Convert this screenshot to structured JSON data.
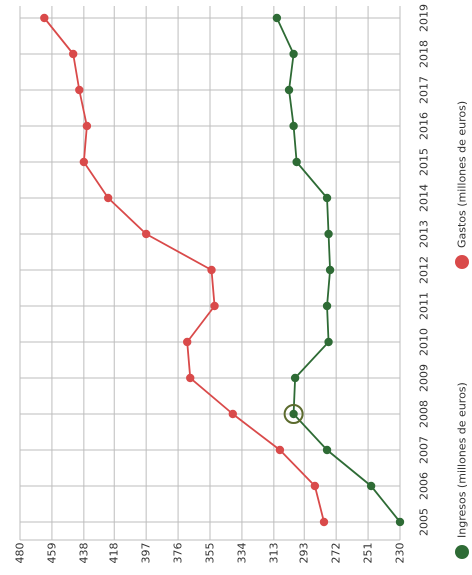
{
  "chart_data": {
    "type": "line",
    "orientation": "rotated-90-clockwise",
    "x": [
      2005,
      2006,
      2007,
      2008,
      2009,
      2010,
      2011,
      2012,
      2013,
      2014,
      2015,
      2016,
      2017,
      2018,
      2019
    ],
    "x_tick_labels": [
      "2005",
      "2006",
      "2007",
      "2008",
      "2009",
      "2010",
      "2011",
      "2012",
      "2013",
      "2014",
      "2015",
      "2016",
      "2017",
      "2018",
      "2019"
    ],
    "y_ticks": [
      480,
      459,
      438,
      418,
      397,
      376,
      355,
      334,
      313,
      293,
      272,
      251,
      230
    ],
    "y_tick_labels": [
      "480",
      "459",
      "438",
      "418",
      "397",
      "376",
      "355",
      "334",
      "313",
      "293",
      "272",
      "251",
      "230"
    ],
    "ylim": [
      230,
      480
    ],
    "grid": true,
    "legend_position": "right",
    "highlight": {
      "series": 0,
      "x": 2008
    },
    "series": [
      {
        "name": "Ingresos (millones de euros)",
        "color": "#2e6b35",
        "values": [
          230,
          249,
          278,
          300,
          299,
          277,
          278,
          276,
          277,
          278,
          298,
          300,
          303,
          300,
          311
        ]
      },
      {
        "name": "Gastos (millones de euros)",
        "color": "#d94a4a",
        "values": [
          280,
          286,
          309,
          340,
          368,
          370,
          352,
          354,
          397,
          422,
          438,
          436,
          441,
          445,
          464
        ]
      }
    ]
  }
}
